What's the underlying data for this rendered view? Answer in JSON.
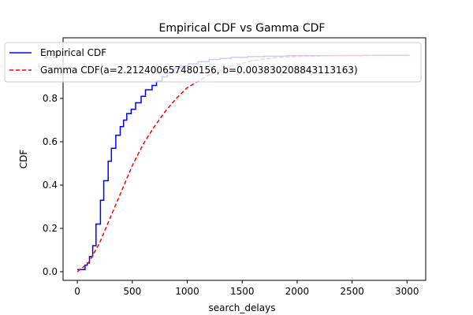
{
  "chart_data": {
    "type": "line",
    "title": "Empirical CDF vs Gamma CDF",
    "xlabel": "search_delays",
    "ylabel": "CDF",
    "xlim": [
      -130,
      3170
    ],
    "ylim": [
      -0.04,
      1.08
    ],
    "x_ticks": [
      0,
      500,
      1000,
      1500,
      2000,
      2500,
      3000
    ],
    "x_tick_labels": [
      "0",
      "500",
      "1000",
      "1500",
      "2000",
      "2500",
      "3000"
    ],
    "y_ticks": [
      0.0,
      0.2,
      0.4,
      0.6,
      0.8,
      1.0
    ],
    "y_tick_labels": [
      "0.0",
      "0.2",
      "0.4",
      "0.6",
      "0.8",
      "1.0"
    ],
    "grid": false,
    "legend_position": "upper-left",
    "series": [
      {
        "name": "Empirical CDF",
        "style": "step",
        "color": "#0000ff",
        "x": [
          0,
          70,
          90,
          110,
          140,
          170,
          210,
          240,
          280,
          310,
          350,
          390,
          420,
          450,
          490,
          530,
          580,
          620,
          680,
          720,
          770,
          820,
          880,
          940,
          1010,
          1100,
          1200,
          1300,
          1400,
          1550,
          1700,
          1900,
          2200,
          2600,
          3020
        ],
        "y": [
          0.01,
          0.03,
          0.04,
          0.07,
          0.12,
          0.22,
          0.33,
          0.42,
          0.51,
          0.57,
          0.63,
          0.67,
          0.7,
          0.73,
          0.75,
          0.78,
          0.81,
          0.84,
          0.86,
          0.88,
          0.9,
          0.92,
          0.94,
          0.95,
          0.96,
          0.97,
          0.98,
          0.985,
          0.99,
          0.993,
          0.995,
          0.997,
          0.998,
          0.999,
          1.0
        ]
      },
      {
        "name": "Gamma CDF(a=2.212400657480156, b=0.003830208843113163)",
        "style": "dashed",
        "color": "#ff0000",
        "x": [
          0,
          100,
          200,
          300,
          400,
          500,
          600,
          700,
          800,
          900,
          1000,
          1200,
          1400,
          1600,
          1800,
          2000,
          2500,
          3020
        ],
        "y": [
          0.0,
          0.04,
          0.13,
          0.25,
          0.37,
          0.49,
          0.59,
          0.67,
          0.74,
          0.8,
          0.85,
          0.91,
          0.95,
          0.975,
          0.988,
          0.994,
          0.999,
          1.0
        ]
      }
    ]
  }
}
